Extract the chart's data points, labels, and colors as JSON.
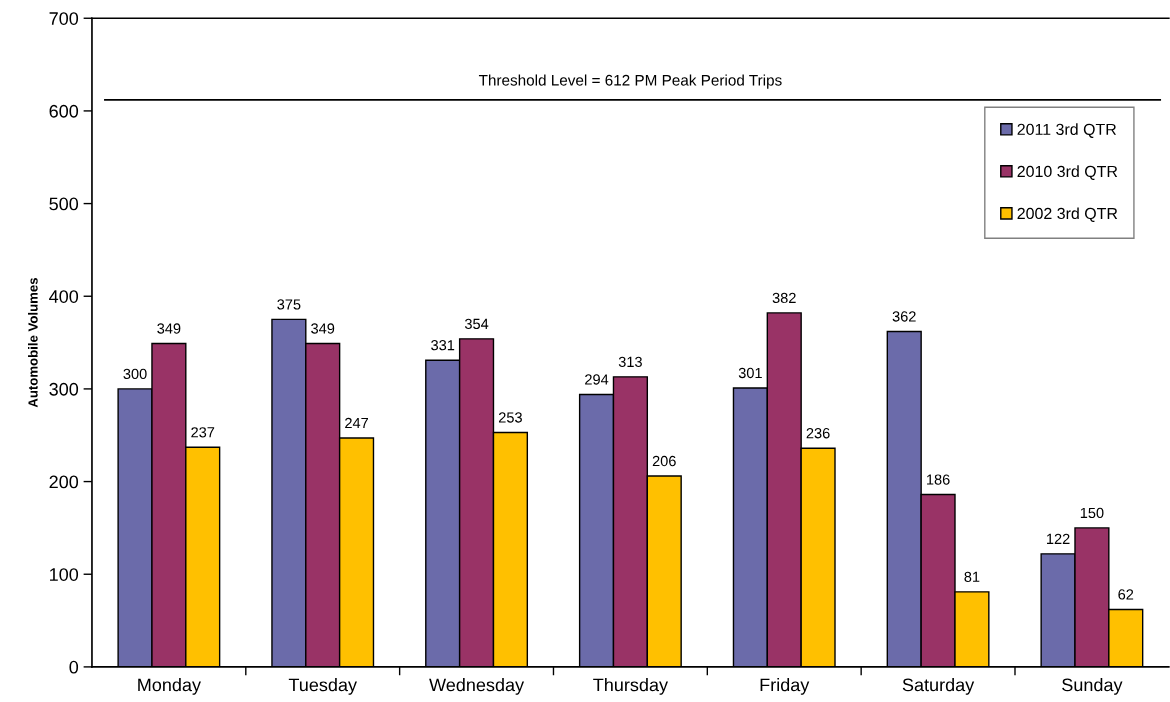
{
  "chart_data": {
    "type": "bar",
    "ylabel": "Automobile Volumes",
    "categories": [
      "Monday",
      "Tuesday",
      "Wednesday",
      "Thursday",
      "Friday",
      "Saturday",
      "Sunday"
    ],
    "series": [
      {
        "name": "2011 3rd QTR",
        "color": "#6b6baa",
        "values": [
          300,
          375,
          331,
          294,
          301,
          362,
          122
        ]
      },
      {
        "name": "2010 3rd QTR",
        "color": "#993366",
        "values": [
          349,
          349,
          354,
          313,
          382,
          186,
          150
        ]
      },
      {
        "name": "2002 3rd QTR",
        "color": "#ffc000",
        "values": [
          237,
          247,
          253,
          206,
          236,
          81,
          62
        ]
      }
    ],
    "ylim": [
      0,
      700
    ],
    "yticks": [
      0,
      100,
      200,
      300,
      400,
      500,
      600,
      700
    ],
    "ref_lines": [
      {
        "axis": "y",
        "value": 612,
        "label": "Threshold Level = 612 PM Peak Period Trips",
        "color": "#000000"
      }
    ],
    "data_labels": true,
    "grid": false,
    "legend": "top right"
  }
}
